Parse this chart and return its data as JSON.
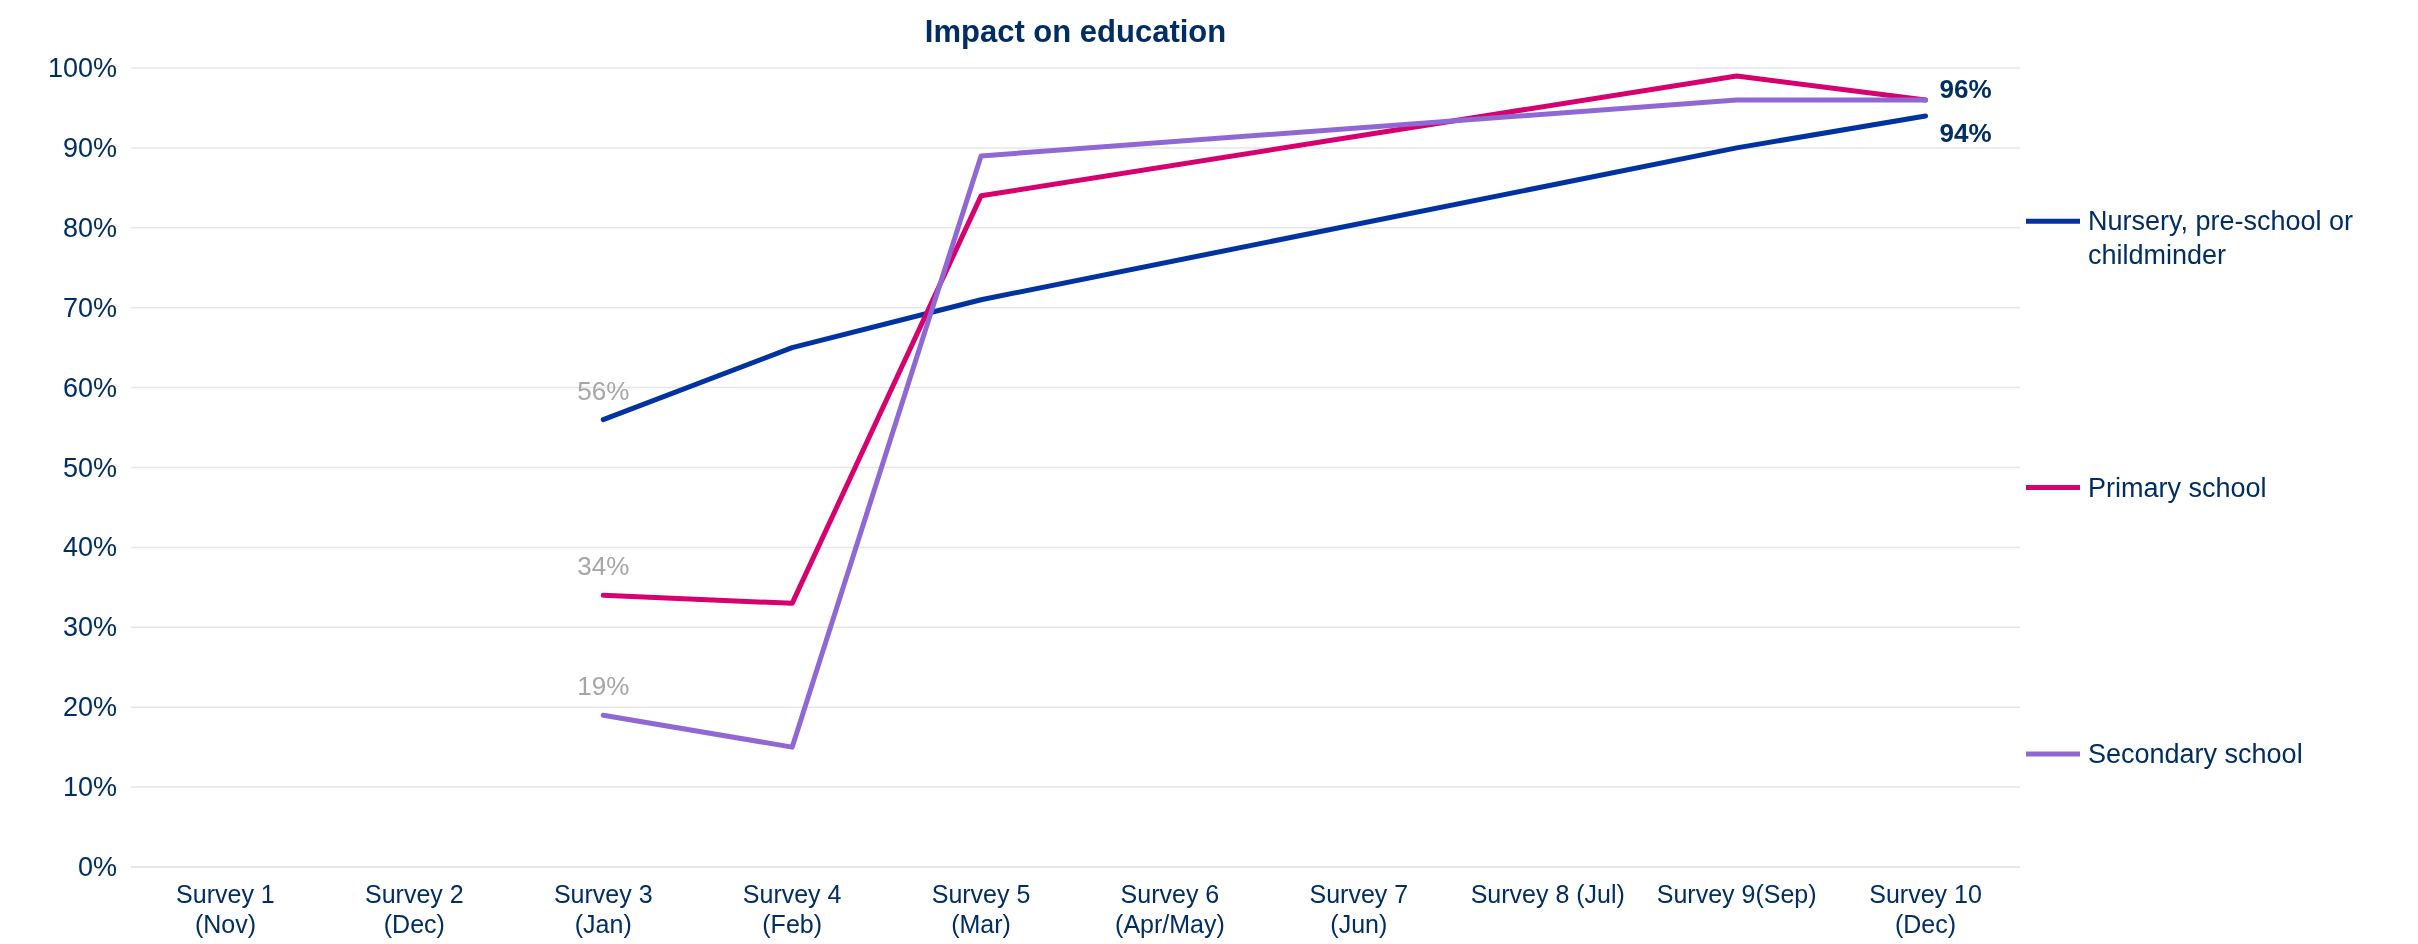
{
  "chart_data": {
    "type": "line",
    "title": "Impact on education",
    "categories": [
      "Survey 1\n(Nov)",
      "Survey 2\n(Dec)",
      "Survey 3\n(Jan)",
      "Survey 4\n(Feb)",
      "Survey 5\n(Mar)",
      "Survey 6\n(Apr/May)",
      "Survey 7\n(Jun)",
      "Survey 8 (Jul)",
      "Survey 9(Sep)",
      "Survey 10\n(Dec)"
    ],
    "series": [
      {
        "name": "Nursery, pre-school or childminder",
        "color": "#0033a0",
        "values": [
          null,
          null,
          56,
          65,
          71,
          null,
          null,
          null,
          90,
          94
        ],
        "value_labels": [
          null,
          null,
          "56%",
          null,
          null,
          null,
          null,
          null,
          null,
          "94%"
        ]
      },
      {
        "name": "Primary school",
        "color": "#d6006e",
        "values": [
          null,
          null,
          34,
          33,
          84,
          null,
          null,
          null,
          99,
          96
        ],
        "value_labels": [
          null,
          null,
          "34%",
          null,
          null,
          null,
          null,
          null,
          null,
          null
        ]
      },
      {
        "name": "Secondary school",
        "color": "#9068d4",
        "values": [
          null,
          null,
          19,
          15,
          89,
          null,
          null,
          null,
          96,
          96
        ],
        "value_labels": [
          null,
          null,
          "19%",
          null,
          null,
          null,
          null,
          null,
          null,
          "96%"
        ]
      }
    ],
    "ylim": [
      0,
      100
    ],
    "yticks": [
      {
        "value": 0,
        "label": "0%"
      },
      {
        "value": 10,
        "label": "10%"
      },
      {
        "value": 20,
        "label": "20%"
      },
      {
        "value": 30,
        "label": "30%"
      },
      {
        "value": 40,
        "label": "40%"
      },
      {
        "value": 50,
        "label": "50%"
      },
      {
        "value": 60,
        "label": "60%"
      },
      {
        "value": 70,
        "label": "70%"
      },
      {
        "value": 80,
        "label": "80%"
      },
      {
        "value": 90,
        "label": "90%"
      },
      {
        "value": 100,
        "label": "100%"
      }
    ],
    "grid": "y",
    "legend": "right",
    "marker": "none",
    "line_style": "solid"
  }
}
